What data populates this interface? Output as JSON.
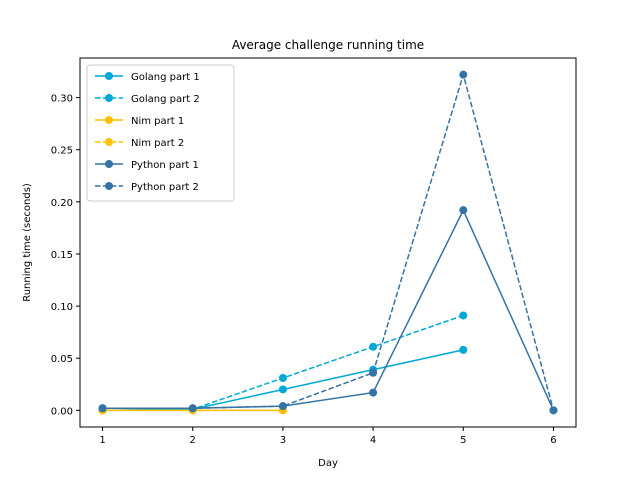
{
  "chart_data": {
    "type": "line",
    "title": "Average challenge running time",
    "xlabel": "Day",
    "ylabel": "Running time (seconds)",
    "xlim": [
      0.75,
      6.25
    ],
    "ylim": [
      -0.016,
      0.338
    ],
    "x_ticks": [
      1,
      2,
      3,
      4,
      5,
      6
    ],
    "y_ticks": [
      0.0,
      0.05,
      0.1,
      0.15,
      0.2,
      0.25,
      0.3
    ],
    "y_tick_labels": [
      "0.00",
      "0.05",
      "0.10",
      "0.15",
      "0.20",
      "0.25",
      "0.30"
    ],
    "grid": false,
    "legend_position": "top-left",
    "series": [
      {
        "name": "Golang part 1",
        "color": "#00a8d6",
        "dash": "solid",
        "x": [
          1,
          2,
          3,
          4,
          5
        ],
        "y": [
          0.0,
          0.001,
          0.02,
          0.039,
          0.058
        ]
      },
      {
        "name": "Golang part 2",
        "color": "#00a8d6",
        "dash": "dashed",
        "x": [
          1,
          2,
          3,
          4,
          5
        ],
        "y": [
          0.0,
          0.001,
          0.031,
          0.061,
          0.091
        ]
      },
      {
        "name": "Nim part 1",
        "color": "#ffc100",
        "dash": "solid",
        "x": [
          1,
          2,
          3
        ],
        "y": [
          0.0,
          0.0,
          0.0
        ]
      },
      {
        "name": "Nim part 2",
        "color": "#ffc100",
        "dash": "dashed",
        "x": [
          1,
          2,
          3
        ],
        "y": [
          0.0,
          0.0,
          0.0
        ]
      },
      {
        "name": "Python part 1",
        "color": "#3572a5",
        "dash": "solid",
        "x": [
          1,
          2,
          3,
          4,
          5,
          6
        ],
        "y": [
          0.002,
          0.002,
          0.004,
          0.017,
          0.192,
          0.0
        ]
      },
      {
        "name": "Python part 2",
        "color": "#3572a5",
        "dash": "dashed",
        "x": [
          1,
          2,
          3,
          4,
          5,
          6
        ],
        "y": [
          0.002,
          0.002,
          0.004,
          0.036,
          0.322,
          0.0
        ]
      }
    ]
  }
}
